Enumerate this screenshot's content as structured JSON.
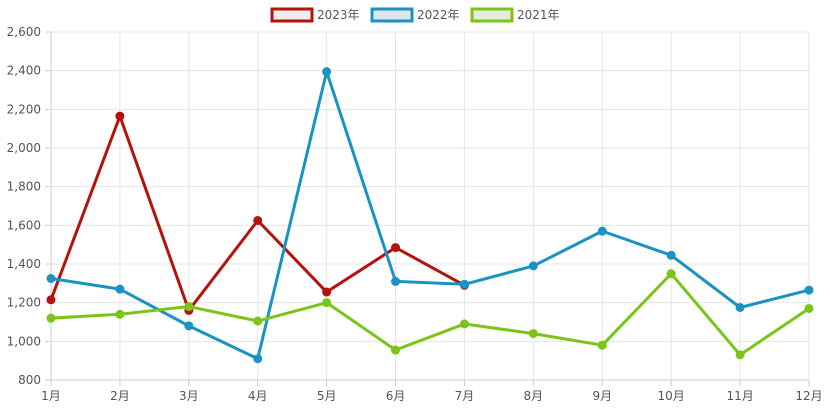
{
  "chart_data": {
    "type": "line",
    "categories": [
      "1月",
      "2月",
      "3月",
      "4月",
      "5月",
      "6月",
      "7月",
      "8月",
      "9月",
      "10月",
      "11月",
      "12月"
    ],
    "y_ticks": [
      "800",
      "1,000",
      "1,200",
      "1,400",
      "1,600",
      "1,800",
      "2,000",
      "2,200",
      "2,400",
      "2,600"
    ],
    "ylim": [
      800,
      2600
    ],
    "grid": true,
    "legend_position": "top-center",
    "series": [
      {
        "name": "2023年",
        "color": "#b5120e",
        "legend_fill": "#ededed",
        "values": [
          1215,
          2165,
          1160,
          1625,
          1255,
          1485,
          1290,
          null,
          null,
          null,
          null,
          null
        ]
      },
      {
        "name": "2022年",
        "color": "#1a93c4",
        "legend_fill": "#dde6ea",
        "values": [
          1325,
          1270,
          1080,
          910,
          2395,
          1310,
          1295,
          1390,
          1570,
          1445,
          1175,
          1265
        ]
      },
      {
        "name": "2021年",
        "color": "#7cc418",
        "legend_fill": "#e4ecdd",
        "values": [
          1120,
          1140,
          1180,
          1105,
          1200,
          955,
          1090,
          1040,
          980,
          1350,
          930,
          1170
        ]
      }
    ]
  }
}
